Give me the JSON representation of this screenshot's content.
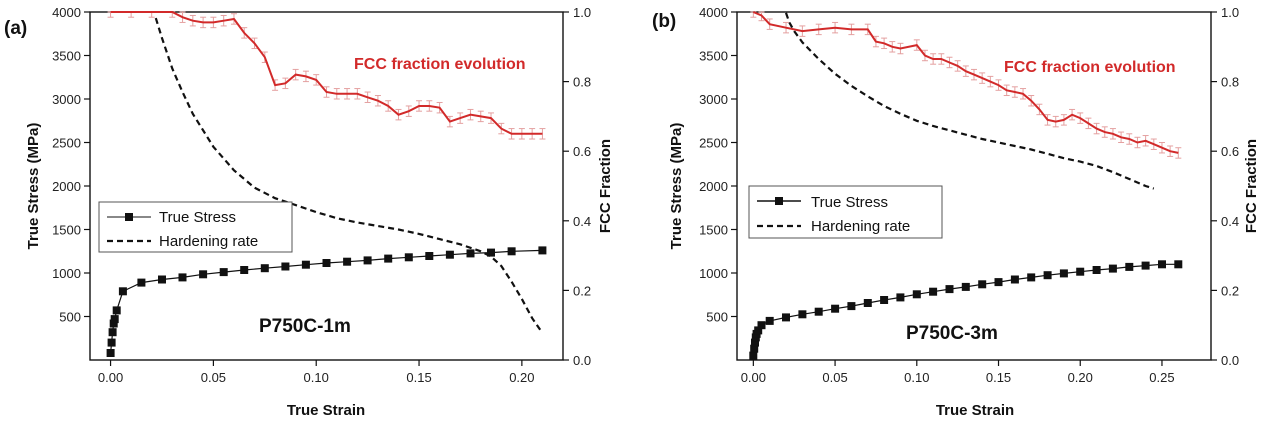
{
  "chart_data": [
    {
      "type": "line",
      "panel_label": "(a)",
      "sample": "P750C-1m",
      "annotation": "FCC fraction evolution",
      "xlabel": "True Strain",
      "ylabel_left": "True Stress (MPa)",
      "ylabel_right": "FCC Fraction",
      "xlim": [
        -0.01,
        0.22
      ],
      "ylim_left": [
        0,
        4000
      ],
      "ylim_right": [
        0,
        1.0
      ],
      "xticks": [
        0.0,
        0.05,
        0.1,
        0.15,
        0.2
      ],
      "xtick_labels": [
        "0.00",
        "0.05",
        "0.10",
        "0.15",
        "0.20"
      ],
      "yticks_left": [
        500,
        1000,
        1500,
        2000,
        2500,
        3000,
        3500,
        4000
      ],
      "yticks_right": [
        0.0,
        0.2,
        0.4,
        0.6,
        0.8,
        1.0
      ],
      "ytick_right_labels": [
        "0.0",
        "0.2",
        "0.4",
        "0.6",
        "0.8",
        "1.0"
      ],
      "legend_position": "center-left",
      "legend": [
        "True Stress",
        "Hardening rate"
      ],
      "colors": {
        "fcc": "#d22a2a",
        "errorbar": "#e4a0a0",
        "stress": "#111111",
        "hardening": "#111111"
      },
      "series": [
        {
          "name": "True Stress",
          "axis": "left",
          "style": "line-square",
          "x": [
            0.0,
            0.0005,
            0.001,
            0.0015,
            0.002,
            0.003,
            0.006,
            0.015,
            0.025,
            0.035,
            0.045,
            0.055,
            0.065,
            0.075,
            0.085,
            0.095,
            0.105,
            0.115,
            0.125,
            0.135,
            0.145,
            0.155,
            0.165,
            0.175,
            0.185,
            0.195,
            0.21
          ],
          "y": [
            80,
            200,
            320,
            420,
            470,
            570,
            790,
            890,
            925,
            950,
            985,
            1010,
            1035,
            1055,
            1075,
            1095,
            1115,
            1130,
            1145,
            1165,
            1180,
            1195,
            1210,
            1225,
            1235,
            1250,
            1260
          ]
        },
        {
          "name": "Hardening rate",
          "axis": "left",
          "style": "dashed",
          "x": [
            0.022,
            0.025,
            0.03,
            0.035,
            0.04,
            0.05,
            0.06,
            0.07,
            0.08,
            0.09,
            0.1,
            0.11,
            0.12,
            0.13,
            0.14,
            0.15,
            0.16,
            0.17,
            0.18,
            0.185,
            0.19,
            0.195,
            0.2,
            0.205,
            0.21
          ],
          "y": [
            3930,
            3700,
            3350,
            3080,
            2830,
            2450,
            2180,
            1980,
            1860,
            1780,
            1700,
            1630,
            1580,
            1540,
            1500,
            1450,
            1390,
            1330,
            1250,
            1190,
            1080,
            900,
            700,
            480,
            310
          ]
        },
        {
          "name": "FCC fraction",
          "axis": "right",
          "style": "line-errorbar",
          "x": [
            0.0,
            0.01,
            0.02,
            0.03,
            0.035,
            0.04,
            0.045,
            0.05,
            0.055,
            0.06,
            0.065,
            0.07,
            0.075,
            0.08,
            0.085,
            0.09,
            0.095,
            0.1,
            0.105,
            0.11,
            0.115,
            0.12,
            0.125,
            0.13,
            0.135,
            0.14,
            0.145,
            0.15,
            0.155,
            0.16,
            0.165,
            0.17,
            0.175,
            0.18,
            0.185,
            0.19,
            0.195,
            0.2,
            0.205,
            0.21
          ],
          "y": [
            1.0,
            1.0,
            1.0,
            1.0,
            0.985,
            0.975,
            0.97,
            0.97,
            0.975,
            0.98,
            0.94,
            0.91,
            0.87,
            0.79,
            0.795,
            0.82,
            0.815,
            0.805,
            0.77,
            0.765,
            0.765,
            0.765,
            0.755,
            0.745,
            0.73,
            0.705,
            0.715,
            0.73,
            0.73,
            0.725,
            0.685,
            0.695,
            0.705,
            0.7,
            0.695,
            0.665,
            0.65,
            0.65,
            0.65,
            0.65
          ],
          "err": 0.015
        }
      ]
    },
    {
      "type": "line",
      "panel_label": "(b)",
      "sample": "P750C-3m",
      "annotation": "FCC fraction evolution",
      "xlabel": "True Strain",
      "ylabel_left": "True Stress (MPa)",
      "ylabel_right": "FCC Fraction",
      "xlim": [
        -0.01,
        0.28
      ],
      "ylim_left": [
        0,
        4000
      ],
      "ylim_right": [
        0,
        1.0
      ],
      "xticks": [
        0.0,
        0.05,
        0.1,
        0.15,
        0.2,
        0.25
      ],
      "xtick_labels": [
        "0.00",
        "0.05",
        "0.10",
        "0.15",
        "0.20",
        "0.25"
      ],
      "yticks_left": [
        500,
        1000,
        1500,
        2000,
        2500,
        3000,
        3500,
        4000
      ],
      "yticks_right": [
        0.0,
        0.2,
        0.4,
        0.6,
        0.8,
        1.0
      ],
      "ytick_right_labels": [
        "0.0",
        "0.2",
        "0.4",
        "0.6",
        "0.8",
        "1.0"
      ],
      "legend_position": "center-left",
      "legend": [
        "True Stress",
        "Hardening rate"
      ],
      "colors": {
        "fcc": "#d22a2a",
        "errorbar": "#e4a0a0",
        "stress": "#111111",
        "hardening": "#111111"
      },
      "series": [
        {
          "name": "True Stress",
          "axis": "left",
          "style": "line-square",
          "x": [
            0.0,
            0.0005,
            0.001,
            0.0015,
            0.002,
            0.003,
            0.005,
            0.01,
            0.02,
            0.03,
            0.04,
            0.05,
            0.06,
            0.07,
            0.08,
            0.09,
            0.1,
            0.11,
            0.12,
            0.13,
            0.14,
            0.15,
            0.16,
            0.17,
            0.18,
            0.19,
            0.2,
            0.21,
            0.22,
            0.23,
            0.24,
            0.25,
            0.26
          ],
          "y": [
            50,
            130,
            200,
            260,
            300,
            340,
            400,
            450,
            490,
            525,
            555,
            590,
            620,
            655,
            690,
            720,
            755,
            785,
            815,
            840,
            870,
            895,
            925,
            950,
            975,
            995,
            1015,
            1035,
            1050,
            1070,
            1085,
            1100,
            1100
          ]
        },
        {
          "name": "Hardening rate",
          "axis": "left",
          "style": "dashed",
          "x": [
            0.02,
            0.022,
            0.025,
            0.03,
            0.04,
            0.05,
            0.06,
            0.07,
            0.08,
            0.09,
            0.1,
            0.11,
            0.12,
            0.13,
            0.14,
            0.15,
            0.16,
            0.17,
            0.18,
            0.19,
            0.2,
            0.21,
            0.22,
            0.23,
            0.24,
            0.245
          ],
          "y": [
            3990,
            3880,
            3780,
            3650,
            3460,
            3290,
            3150,
            3030,
            2920,
            2830,
            2750,
            2690,
            2640,
            2590,
            2540,
            2500,
            2460,
            2420,
            2370,
            2320,
            2280,
            2230,
            2160,
            2080,
            2000,
            1970
          ]
        },
        {
          "name": "FCC fraction",
          "axis": "right",
          "style": "line-errorbar",
          "x": [
            0.0,
            0.005,
            0.01,
            0.02,
            0.03,
            0.04,
            0.05,
            0.06,
            0.07,
            0.075,
            0.08,
            0.085,
            0.09,
            0.1,
            0.105,
            0.11,
            0.115,
            0.12,
            0.125,
            0.13,
            0.135,
            0.14,
            0.145,
            0.15,
            0.155,
            0.16,
            0.165,
            0.17,
            0.175,
            0.18,
            0.185,
            0.19,
            0.195,
            0.2,
            0.205,
            0.21,
            0.215,
            0.22,
            0.225,
            0.23,
            0.235,
            0.24,
            0.245,
            0.25,
            0.255,
            0.26
          ],
          "y": [
            1.0,
            0.99,
            0.965,
            0.955,
            0.945,
            0.95,
            0.955,
            0.95,
            0.95,
            0.915,
            0.91,
            0.9,
            0.895,
            0.905,
            0.875,
            0.865,
            0.865,
            0.855,
            0.845,
            0.83,
            0.82,
            0.81,
            0.8,
            0.79,
            0.775,
            0.77,
            0.765,
            0.745,
            0.72,
            0.69,
            0.685,
            0.69,
            0.705,
            0.695,
            0.68,
            0.665,
            0.655,
            0.65,
            0.64,
            0.635,
            0.625,
            0.63,
            0.62,
            0.61,
            0.6,
            0.595
          ],
          "err": 0.015
        }
      ]
    }
  ]
}
